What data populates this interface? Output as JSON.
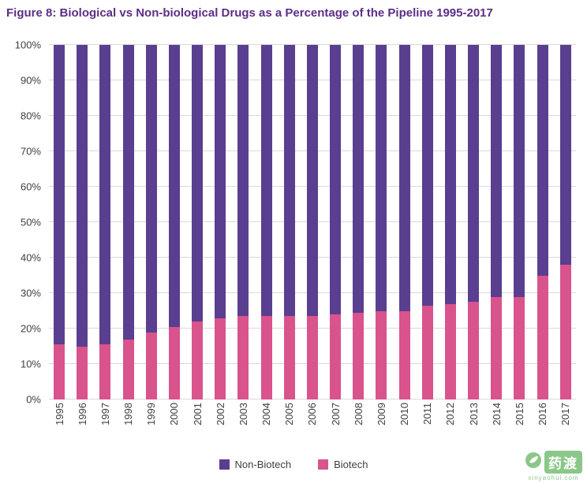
{
  "title": "Figure 8: Biological vs Non-biological Drugs as a Percentage of the Pipeline 1995-2017",
  "colors": {
    "title": "#5C2E86",
    "non_biotech": "#5A3E90",
    "biotech": "#D9538C",
    "gridline": "#D9D9D9",
    "axis_text": "#404040",
    "watermark_green": "#3FA23C"
  },
  "chart_data": {
    "type": "bar",
    "stacked": true,
    "title": "Figure 8: Biological vs Non-biological Drugs as a Percentage of the Pipeline 1995-2017",
    "xlabel": "",
    "ylabel": "",
    "ylim": [
      0,
      100
    ],
    "grid": true,
    "legend_position": "bottom",
    "yticks": [
      "0%",
      "10%",
      "20%",
      "30%",
      "40%",
      "50%",
      "60%",
      "70%",
      "80%",
      "90%",
      "100%"
    ],
    "categories": [
      "1995",
      "1996",
      "1997",
      "1998",
      "1999",
      "2000",
      "2001",
      "2002",
      "2003",
      "2004",
      "2005",
      "2006",
      "2007",
      "2008",
      "2009",
      "2010",
      "2011",
      "2012",
      "2013",
      "2014",
      "2015",
      "2016",
      "2017"
    ],
    "series": [
      {
        "name": "Non-Biotech",
        "color": "#5A3E90",
        "values": [
          84.5,
          85,
          84.5,
          83,
          81,
          79.5,
          78,
          77,
          76.5,
          76.5,
          76.5,
          76.5,
          76,
          75.5,
          75,
          75,
          73.5,
          73,
          72.5,
          71,
          71,
          65,
          62
        ]
      },
      {
        "name": "Biotech",
        "color": "#D9538C",
        "values": [
          15.5,
          15,
          15.5,
          17,
          19,
          20.5,
          22,
          23,
          23.5,
          23.5,
          23.5,
          23.5,
          24,
          24.5,
          25,
          25,
          26.5,
          27,
          27.5,
          29,
          29,
          35,
          38
        ]
      }
    ]
  },
  "legend": {
    "items": [
      {
        "label": "Non-Biotech",
        "color": "#5A3E90"
      },
      {
        "label": "Biotech",
        "color": "#D9538C"
      }
    ]
  },
  "watermark": {
    "text": "药渡",
    "subtext": "xinyaohui.com"
  }
}
